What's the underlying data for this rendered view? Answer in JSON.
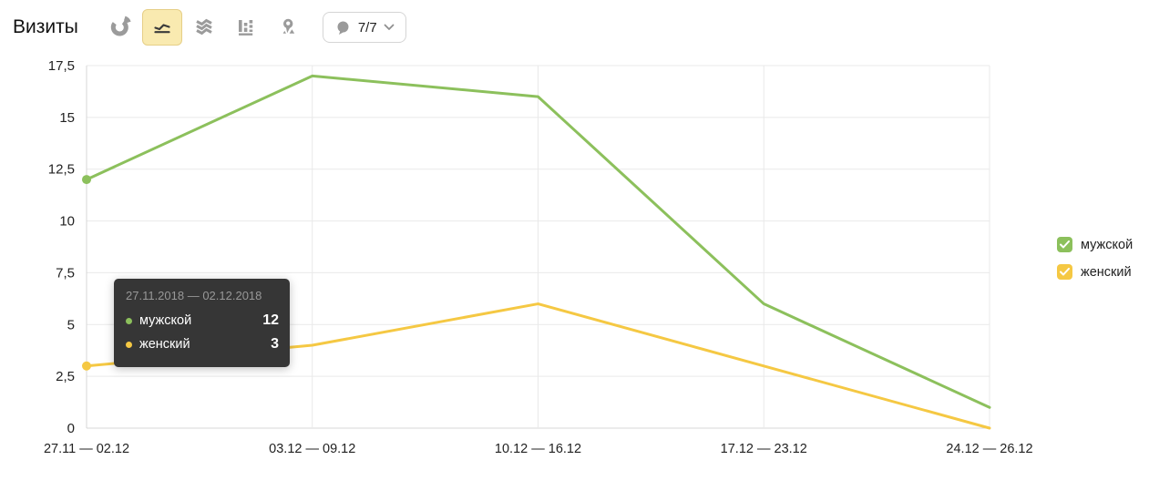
{
  "header": {
    "title": "Визиты"
  },
  "toolbar": {
    "tools": [
      {
        "icon": "pie-chart-icon",
        "selected": false
      },
      {
        "icon": "line-chart-icon",
        "selected": true
      },
      {
        "icon": "stacked-area-icon",
        "selected": false
      },
      {
        "icon": "bar-chart-icon",
        "selected": false
      },
      {
        "icon": "geo-map-icon",
        "selected": false
      }
    ],
    "comments_dropdown": {
      "icon": "speech-bubble-icon",
      "label": "7/7",
      "chevron": "chevron-down-icon"
    }
  },
  "chart_data": {
    "type": "line",
    "title": "Визиты",
    "categories": [
      "27.11 — 02.12",
      "03.12 — 09.12",
      "10.12 — 16.12",
      "17.12 — 23.12",
      "24.12 — 26.12"
    ],
    "series": [
      {
        "name": "мужской",
        "color": "#8cc05c",
        "values": [
          12,
          17,
          16,
          6,
          1
        ]
      },
      {
        "name": "женский",
        "color": "#f5c843",
        "values": [
          3,
          4,
          6,
          3,
          0
        ]
      }
    ],
    "xlabel": "",
    "ylabel": "",
    "ylim": [
      0,
      17.5
    ],
    "ytick_step": 2.5,
    "ytick_labels": [
      "0",
      "2,5",
      "5",
      "7,5",
      "10",
      "12,5",
      "15",
      "17,5"
    ],
    "grid": true,
    "legend_position": "right",
    "hover_index": 0
  },
  "tooltip": {
    "date_range": "27.11.2018 — 02.12.2018",
    "rows": [
      {
        "label": "мужской",
        "value": "12"
      },
      {
        "label": "женский",
        "value": "3"
      }
    ]
  },
  "colors": {
    "series_green": "#8cc05c",
    "series_yellow": "#f5c843",
    "selected_tool_bg": "#f9eab0",
    "selected_tool_border": "#e6cf87",
    "tooltip_bg": "#363636",
    "icon_gray": "#9b9b9b"
  }
}
